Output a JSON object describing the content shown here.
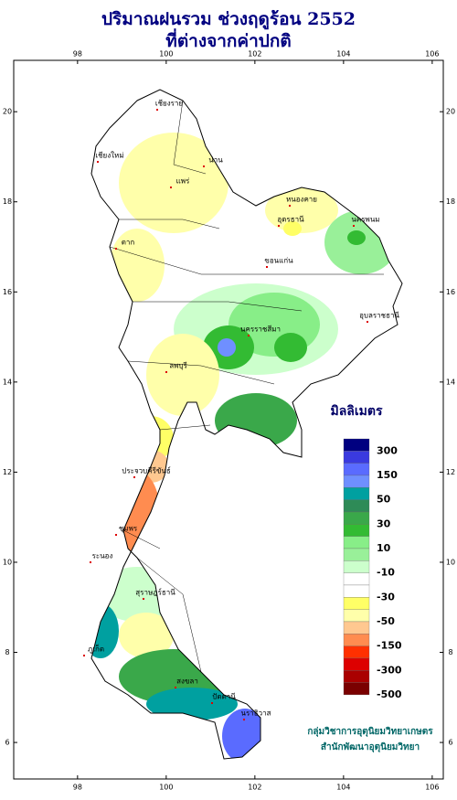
{
  "header": {
    "title": "ปริมาณฝนรวม ช่วงฤดูร้อน 2552",
    "subtitle": "ที่ต่างจากค่าปกติ"
  },
  "map": {
    "lon_range": [
      96.56,
      106.25
    ],
    "lat_range": [
      5.19,
      21.14
    ],
    "lon_ticks": [
      98,
      100,
      102,
      104,
      106
    ],
    "lat_ticks": [
      6,
      8,
      10,
      12,
      14,
      16,
      18,
      20
    ],
    "places": [
      "เชียงราย",
      "เชียงใหม่",
      "น่าน",
      "แพร่",
      "ตาก",
      "หนองคาย",
      "อุดรธานี",
      "นครพนม",
      "ขอนแก่น",
      "นครราชสีมา",
      "อุบลราชธานี",
      "ลพบุรี",
      "ประจวบคีรีขันธ์",
      "ชุมพร",
      "ระนอง",
      "สุราษฎร์ธานี",
      "ภูเก็ต",
      "สงขลา",
      "ปัตตานี",
      "นราธิวาส"
    ]
  },
  "legend": {
    "title": "มิลลิเมตร",
    "labels": [
      300,
      150,
      50,
      30,
      10,
      -10,
      -30,
      -50,
      -150,
      -300,
      -500
    ],
    "colors": [
      "#000080",
      "#3a3adf",
      "#5a6bff",
      "#6f8fff",
      "#00a0a0",
      "#2e8b57",
      "#3aa84a",
      "#33bb33",
      "#88ee88",
      "#99f099",
      "#ccffcc",
      "#ffffff",
      "#ffffff",
      "#ffff66",
      "#ffffaa",
      "#ffc890",
      "#ff8c50",
      "#ff3000",
      "#dd0000",
      "#aa0000",
      "#7a0000"
    ]
  },
  "credit": {
    "line1": "กลุ่มวิชาการอุตุนิยมวิทยาเกษตร",
    "line2": "สำนักพัฒนาอุตุนิยมวิทยา"
  }
}
